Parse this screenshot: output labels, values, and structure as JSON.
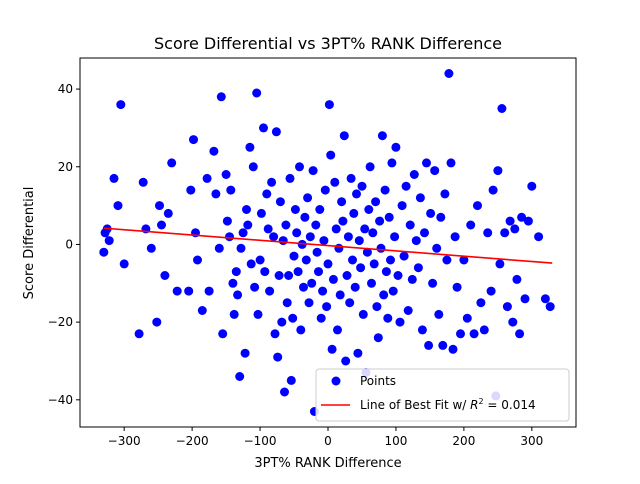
{
  "chart_data": {
    "type": "scatter",
    "title": "Score Differential vs 3PT% RANK Difference",
    "xlabel": "3PT% RANK Difference",
    "ylabel": "Score Differential",
    "xlim": [
      -365,
      365
    ],
    "ylim": [
      -47,
      48
    ],
    "xticks": [
      -300,
      -200,
      -100,
      0,
      100,
      200,
      300
    ],
    "yticks": [
      -40,
      -20,
      0,
      20,
      40
    ],
    "grid": false,
    "legend_position": "lower right",
    "series": [
      {
        "name": "Points",
        "color": "#0000ff",
        "points": [
          [
            -330,
            -2
          ],
          [
            -328,
            3
          ],
          [
            -322,
            1
          ],
          [
            -315,
            17
          ],
          [
            -309,
            10
          ],
          [
            -305,
            36
          ],
          [
            -300,
            -5
          ],
          [
            -278,
            -23
          ],
          [
            -272,
            16
          ],
          [
            -268,
            4
          ],
          [
            -260,
            -1
          ],
          [
            -252,
            -20
          ],
          [
            -248,
            10
          ],
          [
            -245,
            5
          ],
          [
            -240,
            -8
          ],
          [
            -235,
            8
          ],
          [
            -230,
            21
          ],
          [
            -222,
            -12
          ],
          [
            -205,
            -12
          ],
          [
            -202,
            14
          ],
          [
            -198,
            27
          ],
          [
            -195,
            3
          ],
          [
            -192,
            -4
          ],
          [
            -185,
            -17
          ],
          [
            -178,
            17
          ],
          [
            -175,
            -12
          ],
          [
            -168,
            24
          ],
          [
            -165,
            13
          ],
          [
            -160,
            -1
          ],
          [
            -157,
            38
          ],
          [
            -155,
            -23
          ],
          [
            -150,
            18
          ],
          [
            -148,
            6
          ],
          [
            -145,
            2
          ],
          [
            -143,
            14
          ],
          [
            -140,
            -10
          ],
          [
            -138,
            -18
          ],
          [
            -135,
            -7
          ],
          [
            -133,
            -13
          ],
          [
            -130,
            -34
          ],
          [
            -128,
            -1
          ],
          [
            -125,
            3
          ],
          [
            -122,
            -28
          ],
          [
            -120,
            9
          ],
          [
            -118,
            5
          ],
          [
            -115,
            25
          ],
          [
            -113,
            -5
          ],
          [
            -110,
            20
          ],
          [
            -108,
            -11
          ],
          [
            -105,
            39
          ],
          [
            -103,
            -18
          ],
          [
            -100,
            -4
          ],
          [
            -98,
            8
          ],
          [
            -95,
            30
          ],
          [
            -93,
            -7
          ],
          [
            -90,
            13
          ],
          [
            -88,
            4
          ],
          [
            -86,
            -12
          ],
          [
            -83,
            16
          ],
          [
            -80,
            2
          ],
          [
            -78,
            -23
          ],
          [
            -76,
            29
          ],
          [
            -74,
            -29
          ],
          [
            -72,
            -8
          ],
          [
            -70,
            11
          ],
          [
            -68,
            -20
          ],
          [
            -66,
            1
          ],
          [
            -64,
            -38
          ],
          [
            -62,
            5
          ],
          [
            -60,
            -15
          ],
          [
            -58,
            -8
          ],
          [
            -56,
            17
          ],
          [
            -54,
            -35
          ],
          [
            -52,
            -19
          ],
          [
            -50,
            -3
          ],
          [
            -48,
            9
          ],
          [
            -46,
            3
          ],
          [
            -44,
            -7
          ],
          [
            -42,
            20
          ],
          [
            -40,
            -22
          ],
          [
            -38,
            0
          ],
          [
            -36,
            -11
          ],
          [
            -34,
            7
          ],
          [
            -32,
            -4
          ],
          [
            -30,
            12
          ],
          [
            -28,
            -15
          ],
          [
            -26,
            2
          ],
          [
            -24,
            -10
          ],
          [
            -22,
            19
          ],
          [
            -20,
            -43
          ],
          [
            -18,
            5
          ],
          [
            -16,
            -2
          ],
          [
            -14,
            -7
          ],
          [
            -12,
            9
          ],
          [
            -10,
            -19
          ],
          [
            -8,
            -12
          ],
          [
            -6,
            1
          ],
          [
            -4,
            14
          ],
          [
            -2,
            -16
          ],
          [
            0,
            -5
          ],
          [
            2,
            36
          ],
          [
            4,
            23
          ],
          [
            6,
            -27
          ],
          [
            8,
            -9
          ],
          [
            10,
            16
          ],
          [
            12,
            4
          ],
          [
            14,
            -22
          ],
          [
            16,
            -1
          ],
          [
            18,
            -13
          ],
          [
            20,
            11
          ],
          [
            22,
            6
          ],
          [
            24,
            28
          ],
          [
            26,
            -30
          ],
          [
            28,
            -8
          ],
          [
            30,
            2
          ],
          [
            32,
            -15
          ],
          [
            34,
            17
          ],
          [
            36,
            -4
          ],
          [
            38,
            8
          ],
          [
            40,
            -11
          ],
          [
            42,
            13
          ],
          [
            44,
            -28
          ],
          [
            46,
            1
          ],
          [
            48,
            -6
          ],
          [
            50,
            15
          ],
          [
            52,
            -18
          ],
          [
            54,
            4
          ],
          [
            56,
            -33
          ],
          [
            58,
            -2
          ],
          [
            60,
            9
          ],
          [
            62,
            20
          ],
          [
            64,
            -10
          ],
          [
            66,
            3
          ],
          [
            68,
            -5
          ],
          [
            70,
            11
          ],
          [
            72,
            -16
          ],
          [
            74,
            -24
          ],
          [
            76,
            6
          ],
          [
            78,
            -1
          ],
          [
            80,
            28
          ],
          [
            82,
            -13
          ],
          [
            84,
            14
          ],
          [
            86,
            -7
          ],
          [
            88,
            -19
          ],
          [
            90,
            7
          ],
          [
            92,
            -4
          ],
          [
            94,
            21
          ],
          [
            96,
            -12
          ],
          [
            98,
            2
          ],
          [
            100,
            25
          ],
          [
            103,
            -8
          ],
          [
            106,
            -20
          ],
          [
            109,
            10
          ],
          [
            112,
            -3
          ],
          [
            115,
            15
          ],
          [
            118,
            -17
          ],
          [
            121,
            5
          ],
          [
            124,
            -9
          ],
          [
            127,
            18
          ],
          [
            130,
            1
          ],
          [
            133,
            -6
          ],
          [
            136,
            12
          ],
          [
            139,
            -22
          ],
          [
            142,
            3
          ],
          [
            145,
            21
          ],
          [
            148,
            -26
          ],
          [
            151,
            8
          ],
          [
            154,
            -10
          ],
          [
            157,
            19
          ],
          [
            160,
            -1
          ],
          [
            163,
            -18
          ],
          [
            166,
            7
          ],
          [
            169,
            -26
          ],
          [
            172,
            13
          ],
          [
            175,
            -4
          ],
          [
            178,
            44
          ],
          [
            181,
            21
          ],
          [
            184,
            -27
          ],
          [
            187,
            2
          ],
          [
            190,
            -11
          ],
          [
            195,
            -23
          ],
          [
            200,
            -4
          ],
          [
            205,
            -19
          ],
          [
            210,
            5
          ],
          [
            215,
            -23
          ],
          [
            220,
            10
          ],
          [
            225,
            -15
          ],
          [
            230,
            -22
          ],
          [
            235,
            3
          ],
          [
            240,
            -12
          ],
          [
            243,
            14
          ],
          [
            247,
            -39
          ],
          [
            250,
            19
          ],
          [
            253,
            -5
          ],
          [
            256,
            35
          ],
          [
            260,
            3
          ],
          [
            264,
            -16
          ],
          [
            268,
            6
          ],
          [
            272,
            -20
          ],
          [
            275,
            4
          ],
          [
            278,
            -9
          ],
          [
            282,
            -23
          ],
          [
            285,
            7
          ],
          [
            290,
            -14
          ],
          [
            295,
            6
          ],
          [
            300,
            15
          ],
          [
            310,
            2
          ],
          [
            320,
            -14
          ],
          [
            327,
            -16
          ],
          [
            -325,
            4
          ]
        ]
      },
      {
        "name": "Line of Best Fit w/ $R^2 = 0.014$",
        "legend_prefix": "Line of Best Fit w/ ",
        "legend_math": "R",
        "legend_sup": "2",
        "legend_suffix": " = 0.014",
        "color": "#ff0000",
        "type": "line",
        "x": [
          -330,
          330
        ],
        "y": [
          4.2,
          -4.8
        ]
      }
    ]
  }
}
